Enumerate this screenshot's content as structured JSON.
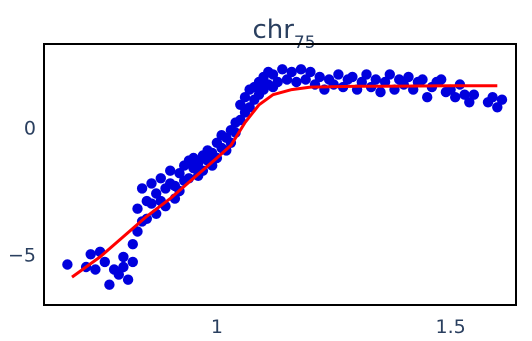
{
  "chart_data": {
    "type": "scatter",
    "title": "chr",
    "title_subscript": "75",
    "xlabel": "",
    "ylabel": "",
    "xlim": [
      0.63,
      1.64
    ],
    "ylim": [
      -7.0,
      3.3
    ],
    "x_ticks": [
      {
        "value": 1,
        "label": "1"
      },
      {
        "value": 1.5,
        "label": "1.5"
      }
    ],
    "y_ticks": [
      {
        "value": 0,
        "label": "0"
      },
      {
        "value": -5,
        "label": "−5"
      }
    ],
    "grid": false,
    "legend": "none",
    "colors": {
      "points": "#0000dd",
      "fit_line": "#ff0000",
      "axis": "#000000",
      "text": "#2a3f5f"
    },
    "series": [
      {
        "type": "scatter",
        "points": [
          [
            0.68,
            -5.4
          ],
          [
            0.72,
            -5.5
          ],
          [
            0.73,
            -5.0
          ],
          [
            0.74,
            -5.6
          ],
          [
            0.75,
            -4.9
          ],
          [
            0.76,
            -5.3
          ],
          [
            0.77,
            -6.2
          ],
          [
            0.78,
            -5.6
          ],
          [
            0.79,
            -5.8
          ],
          [
            0.8,
            -5.5
          ],
          [
            0.8,
            -5.1
          ],
          [
            0.81,
            -6.0
          ],
          [
            0.82,
            -5.3
          ],
          [
            0.82,
            -4.6
          ],
          [
            0.83,
            -4.1
          ],
          [
            0.83,
            -3.2
          ],
          [
            0.84,
            -2.4
          ],
          [
            0.84,
            -3.7
          ],
          [
            0.85,
            -2.9
          ],
          [
            0.85,
            -3.6
          ],
          [
            0.86,
            -2.2
          ],
          [
            0.86,
            -3.0
          ],
          [
            0.87,
            -2.6
          ],
          [
            0.87,
            -3.4
          ],
          [
            0.88,
            -2.0
          ],
          [
            0.88,
            -2.9
          ],
          [
            0.89,
            -2.4
          ],
          [
            0.89,
            -3.1
          ],
          [
            0.9,
            -2.2
          ],
          [
            0.9,
            -1.7
          ],
          [
            0.91,
            -2.8
          ],
          [
            0.91,
            -2.3
          ],
          [
            0.92,
            -1.8
          ],
          [
            0.92,
            -2.5
          ],
          [
            0.93,
            -2.1
          ],
          [
            0.93,
            -1.5
          ],
          [
            0.94,
            -1.3
          ],
          [
            0.94,
            -2.0
          ],
          [
            0.95,
            -1.6
          ],
          [
            0.95,
            -1.2
          ],
          [
            0.96,
            -1.9
          ],
          [
            0.96,
            -1.4
          ],
          [
            0.97,
            -1.1
          ],
          [
            0.97,
            -1.7
          ],
          [
            0.98,
            -1.3
          ],
          [
            0.98,
            -0.9
          ],
          [
            0.99,
            -1.5
          ],
          [
            0.99,
            -1.0
          ],
          [
            1.0,
            -0.6
          ],
          [
            1.0,
            -1.2
          ],
          [
            1.01,
            -0.8
          ],
          [
            1.01,
            -0.3
          ],
          [
            1.02,
            -0.9
          ],
          [
            1.02,
            -0.4
          ],
          [
            1.03,
            -0.1
          ],
          [
            1.03,
            -0.6
          ],
          [
            1.04,
            0.2
          ],
          [
            1.04,
            -0.2
          ],
          [
            1.05,
            0.3
          ],
          [
            1.05,
            0.9
          ],
          [
            1.06,
            0.6
          ],
          [
            1.06,
            1.2
          ],
          [
            1.07,
            0.8
          ],
          [
            1.07,
            1.5
          ],
          [
            1.08,
            1.1
          ],
          [
            1.08,
            1.6
          ],
          [
            1.09,
            1.3
          ],
          [
            1.09,
            1.8
          ],
          [
            1.1,
            1.5
          ],
          [
            1.1,
            2.0
          ],
          [
            1.11,
            1.7
          ],
          [
            1.11,
            2.2
          ],
          [
            1.12,
            1.6
          ],
          [
            1.12,
            2.1
          ],
          [
            1.13,
            1.8
          ],
          [
            1.14,
            2.3
          ],
          [
            1.15,
            1.9
          ],
          [
            1.16,
            2.2
          ],
          [
            1.17,
            1.8
          ],
          [
            1.18,
            2.3
          ],
          [
            1.19,
            1.9
          ],
          [
            1.2,
            2.2
          ],
          [
            1.21,
            1.7
          ],
          [
            1.22,
            2.0
          ],
          [
            1.23,
            1.5
          ],
          [
            1.24,
            1.9
          ],
          [
            1.25,
            1.7
          ],
          [
            1.26,
            2.1
          ],
          [
            1.27,
            1.6
          ],
          [
            1.28,
            1.9
          ],
          [
            1.29,
            2.0
          ],
          [
            1.3,
            1.5
          ],
          [
            1.31,
            1.8
          ],
          [
            1.32,
            2.1
          ],
          [
            1.33,
            1.6
          ],
          [
            1.34,
            1.9
          ],
          [
            1.35,
            1.4
          ],
          [
            1.36,
            1.8
          ],
          [
            1.37,
            2.1
          ],
          [
            1.38,
            1.5
          ],
          [
            1.39,
            1.9
          ],
          [
            1.4,
            1.7
          ],
          [
            1.41,
            2.0
          ],
          [
            1.42,
            1.5
          ],
          [
            1.43,
            1.8
          ],
          [
            1.44,
            1.9
          ],
          [
            1.45,
            1.2
          ],
          [
            1.46,
            1.6
          ],
          [
            1.47,
            1.8
          ],
          [
            1.48,
            1.9
          ],
          [
            1.49,
            1.4
          ],
          [
            1.5,
            1.5
          ],
          [
            1.51,
            1.2
          ],
          [
            1.52,
            1.7
          ],
          [
            1.53,
            1.3
          ],
          [
            1.54,
            1.0
          ],
          [
            1.55,
            1.3
          ],
          [
            1.58,
            1.0
          ],
          [
            1.59,
            1.2
          ],
          [
            1.6,
            0.8
          ],
          [
            1.61,
            1.1
          ]
        ]
      },
      {
        "type": "line",
        "points": [
          [
            0.69,
            -5.9
          ],
          [
            0.75,
            -5.1
          ],
          [
            0.8,
            -4.3
          ],
          [
            0.85,
            -3.5
          ],
          [
            0.9,
            -2.8
          ],
          [
            0.95,
            -2.0
          ],
          [
            1.0,
            -1.2
          ],
          [
            1.03,
            -0.7
          ],
          [
            1.06,
            0.2
          ],
          [
            1.09,
            0.9
          ],
          [
            1.12,
            1.3
          ],
          [
            1.16,
            1.5
          ],
          [
            1.2,
            1.6
          ],
          [
            1.3,
            1.63
          ],
          [
            1.4,
            1.64
          ],
          [
            1.5,
            1.65
          ],
          [
            1.6,
            1.65
          ]
        ]
      }
    ]
  }
}
